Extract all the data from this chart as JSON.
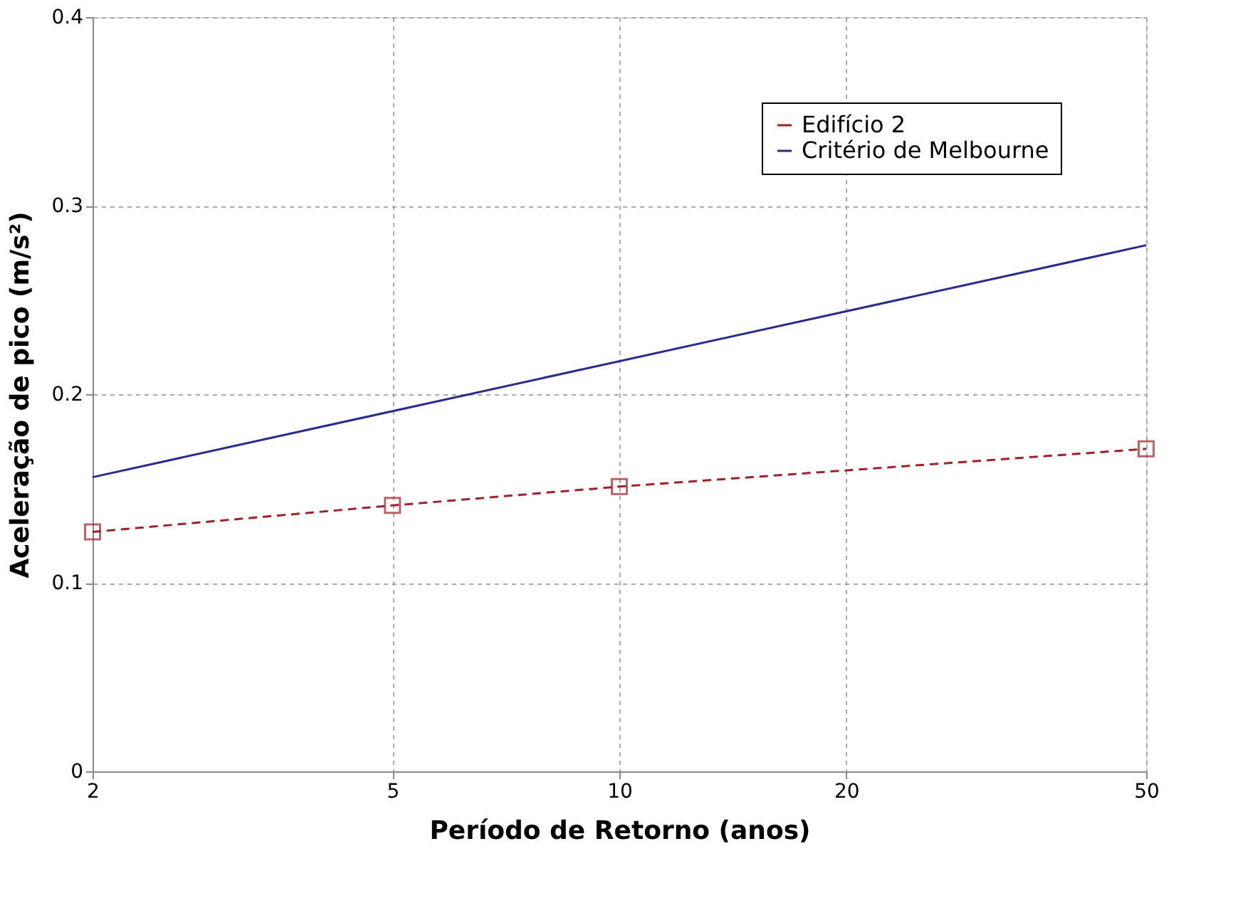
{
  "chart_data": {
    "type": "line",
    "xlabel": "Período de Retorno (anos)",
    "ylabel": "Aceleração de pico (m/s²)",
    "log": "x",
    "xlim": [
      2,
      50
    ],
    "xticks": [
      2,
      5,
      10,
      20,
      50
    ],
    "ylim": [
      0,
      0.4
    ],
    "yticks": [
      0,
      0.1,
      0.2,
      0.3,
      0.4
    ],
    "grid": true,
    "legend": "top right",
    "series": [
      {
        "name": "Edifício 2",
        "color": "#a0202a",
        "x": [
          2,
          5,
          10,
          50
        ],
        "values": [
          0.127,
          0.141,
          0.151,
          0.171
        ],
        "marker": "square",
        "line_style": "dashed"
      },
      {
        "name": "Critério de Melbourne",
        "color": "#2a2a90",
        "x": [
          2,
          50
        ],
        "values": [
          0.156,
          0.279
        ],
        "marker": "none",
        "line_style": "solid"
      }
    ]
  }
}
